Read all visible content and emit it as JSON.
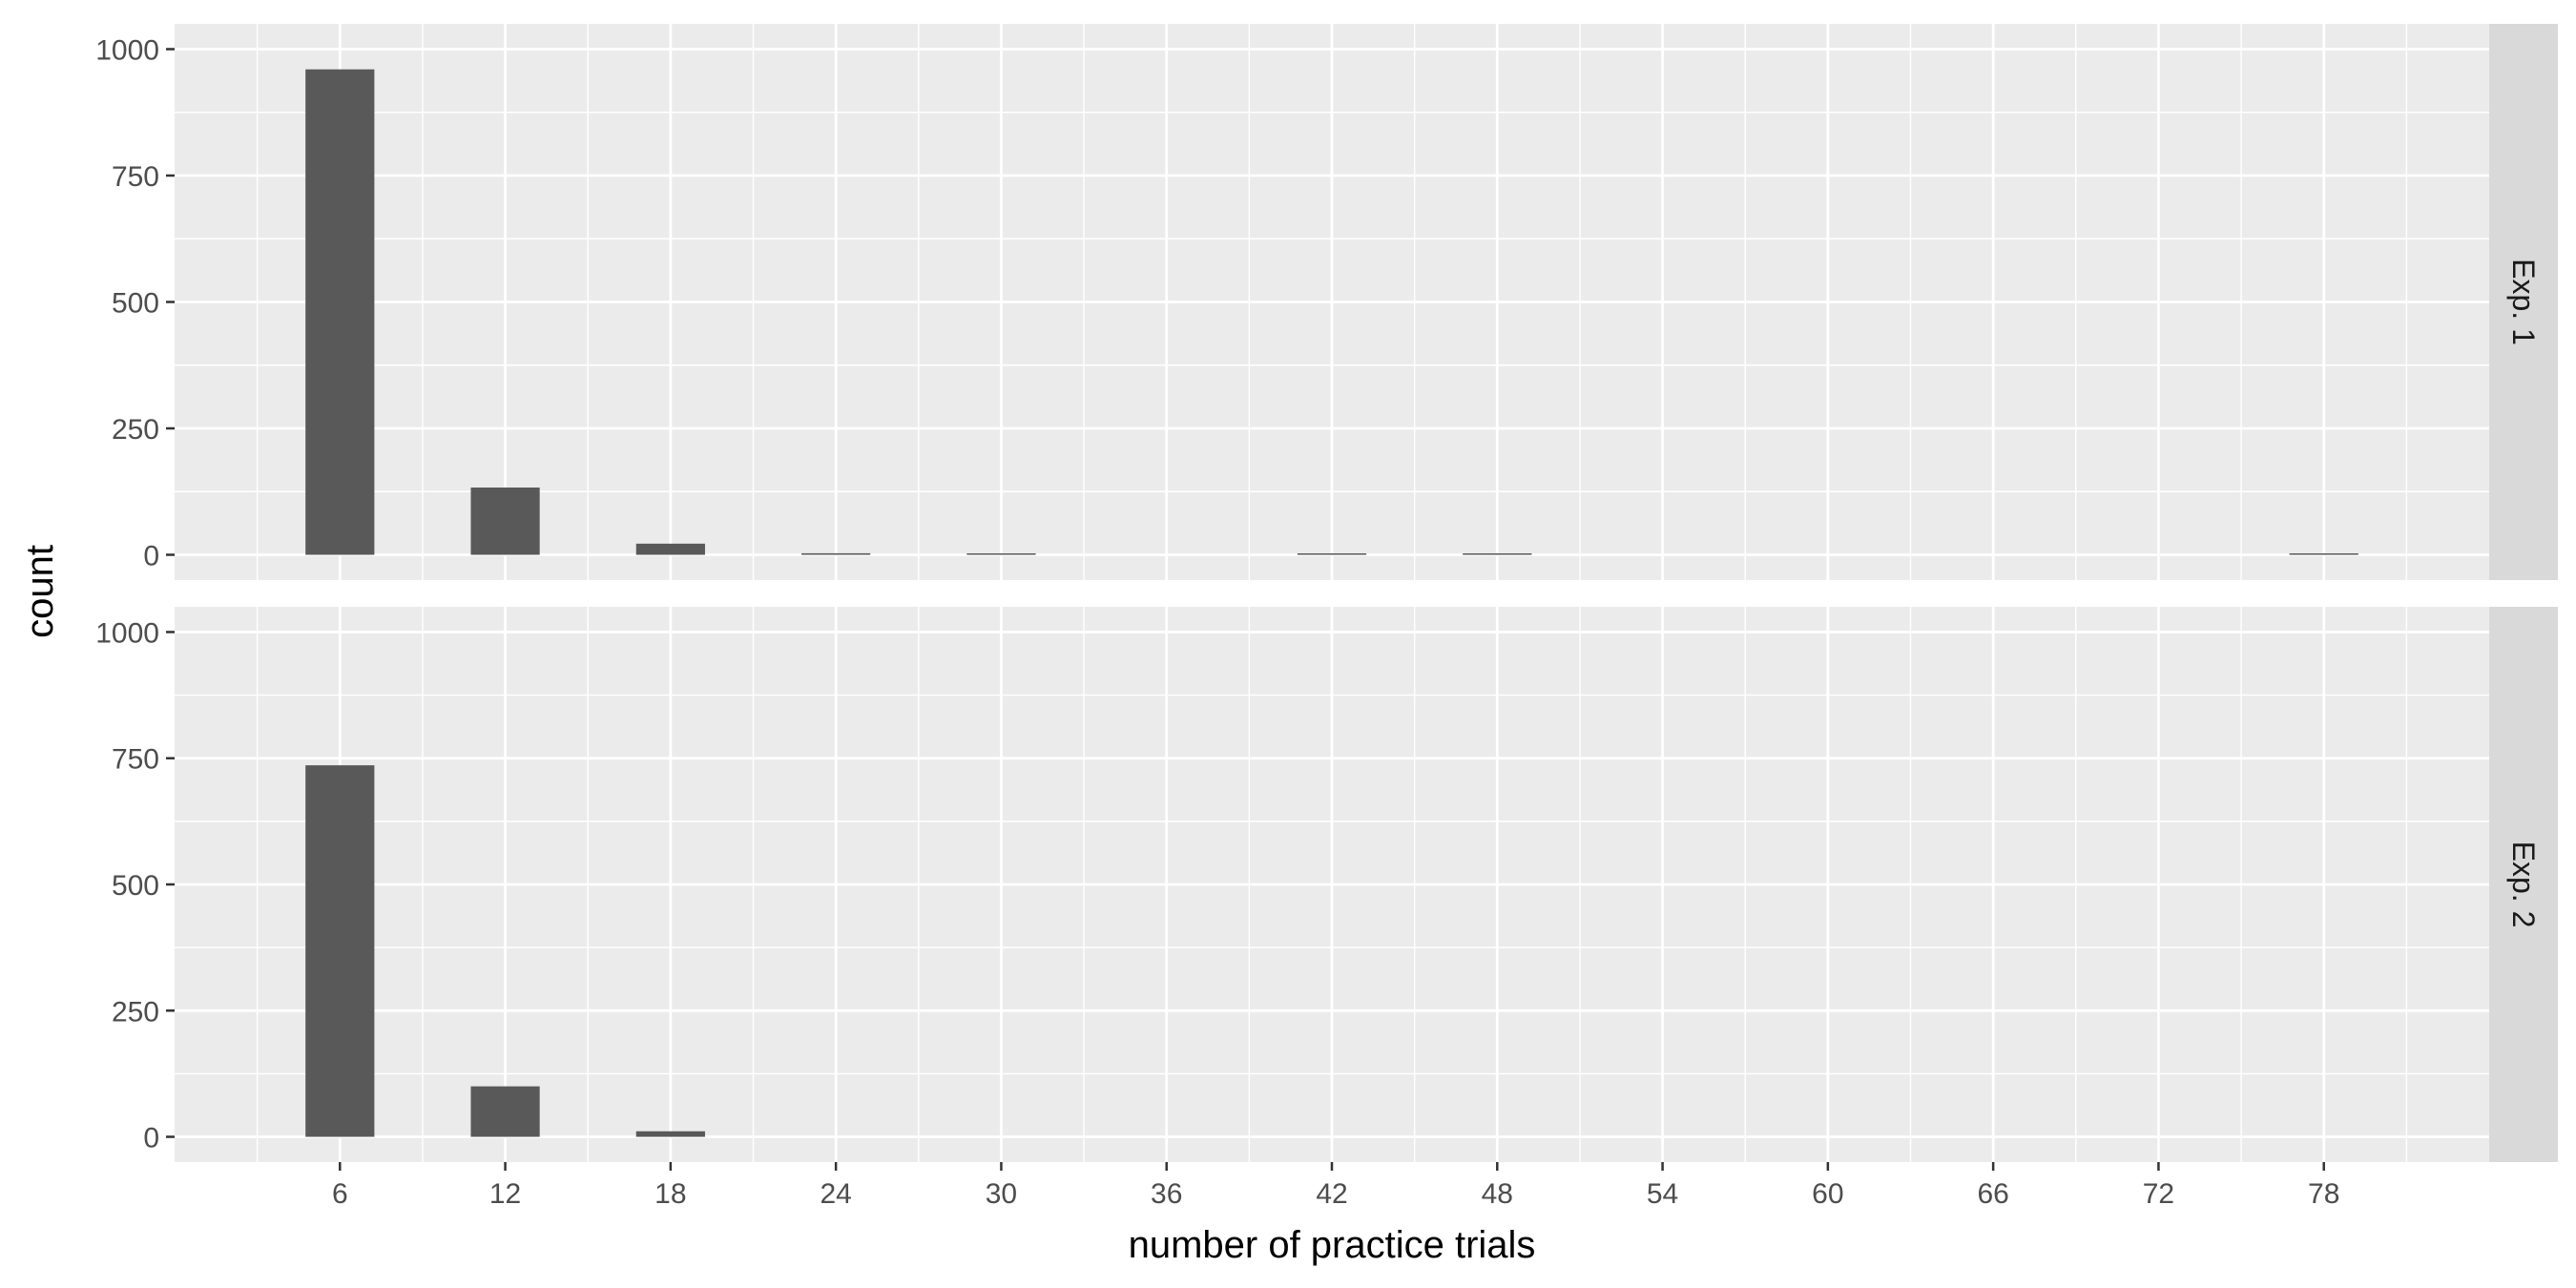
{
  "chart_data": {
    "type": "bar",
    "xlabel": "number of practice trials",
    "ylabel": "count",
    "x_ticks": [
      6,
      12,
      18,
      24,
      30,
      36,
      42,
      48,
      54,
      60,
      66,
      72,
      78
    ],
    "xlim": [
      0,
      84
    ],
    "ylim": [
      0,
      1000
    ],
    "y_ticks": [
      0,
      250,
      500,
      750,
      1000
    ],
    "grid": true,
    "facets": [
      {
        "label": "Exp. 1",
        "bins": [
          {
            "x": 6,
            "count": 960
          },
          {
            "x": 12,
            "count": 133
          },
          {
            "x": 18,
            "count": 22
          },
          {
            "x": 24,
            "count": 3
          },
          {
            "x": 30,
            "count": 1
          },
          {
            "x": 42,
            "count": 1
          },
          {
            "x": 48,
            "count": 1
          },
          {
            "x": 78,
            "count": 1
          }
        ]
      },
      {
        "label": "Exp. 2",
        "bins": [
          {
            "x": 6,
            "count": 736
          },
          {
            "x": 12,
            "count": 100
          },
          {
            "x": 18,
            "count": 11
          }
        ]
      }
    ],
    "colors": {
      "bar": "#595959",
      "panel": "#ebebeb",
      "grid": "#ffffff",
      "strip": "#d9d9d9"
    }
  }
}
